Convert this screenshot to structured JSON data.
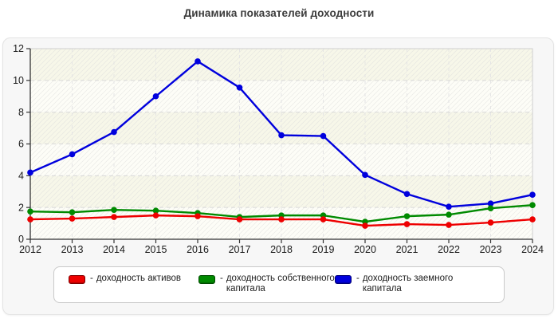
{
  "title": "Динамика показателей доходности",
  "chart_data": {
    "type": "line",
    "title": "Динамика показателей доходности",
    "categories": [
      "2012",
      "2013",
      "2014",
      "2015",
      "2016",
      "2017",
      "2018",
      "2019",
      "2020",
      "2021",
      "2022",
      "2023",
      "2024"
    ],
    "series": [
      {
        "name": "доходность активов",
        "color": "#ee0000",
        "values": [
          1.25,
          1.3,
          1.4,
          1.5,
          1.45,
          1.25,
          1.25,
          1.25,
          0.85,
          0.95,
          0.9,
          1.05,
          1.25
        ]
      },
      {
        "name": "доходность собственного капитала",
        "color": "#008a00",
        "values": [
          1.75,
          1.7,
          1.85,
          1.8,
          1.65,
          1.4,
          1.5,
          1.5,
          1.1,
          1.45,
          1.55,
          1.95,
          2.15
        ]
      },
      {
        "name": "доходность заемного капитала",
        "color": "#0000dd",
        "values": [
          4.2,
          5.35,
          6.75,
          9.0,
          11.2,
          9.55,
          6.55,
          6.5,
          4.05,
          2.85,
          2.05,
          2.25,
          2.8
        ]
      }
    ],
    "xlabel": "",
    "ylabel": "",
    "ylim": [
      0,
      12
    ],
    "yticks": [
      0,
      2,
      4,
      6,
      8,
      10,
      12
    ],
    "grid": true,
    "legend_position": "bottom"
  },
  "legend": {
    "dash": "-",
    "items": [
      {
        "label": "доходность активов",
        "color": "#ee0000"
      },
      {
        "label": "доходность собственного капитала",
        "color": "#008a00"
      },
      {
        "label": "доходность заемного капитала",
        "color": "#0000dd"
      }
    ]
  },
  "colors": {
    "panel_bg": "#f7f7f7",
    "plot_band_cream": "#f7f7e9",
    "plot_band_white": "#fdfdf7",
    "gridline": "#d8d8d8",
    "axis": "#333333",
    "text": "#1a1a1a"
  }
}
